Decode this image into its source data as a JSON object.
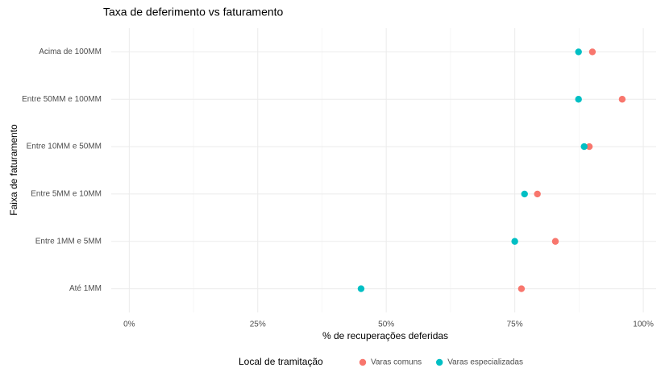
{
  "chart_data": {
    "type": "dot",
    "title": "Taxa de deferimento vs faturamento",
    "x_label": "% de recuperações deferidas",
    "y_label": "Faixa de faturamento",
    "legend_title": "Local de tramitação",
    "legend_position": "bottom",
    "categories": [
      "Acima de 100MM",
      "Entre 50MM e 100MM",
      "Entre 10MM e 50MM",
      "Entre 5MM e 10MM",
      "Entre 1MM e 5MM",
      "Até 1MM"
    ],
    "series": [
      {
        "name": "Varas comuns",
        "color": "#f8766d",
        "values": [
          90.1,
          95.9,
          89.5,
          79.4,
          82.9,
          76.3
        ]
      },
      {
        "name": "Varas especializadas",
        "color": "#00bfc4",
        "values": [
          87.4,
          87.4,
          88.5,
          76.9,
          75.0,
          45.1
        ]
      }
    ],
    "xlim": [
      -3.5,
      102.5
    ],
    "xticks": [
      {
        "value": 0,
        "label": "0%"
      },
      {
        "value": 25,
        "label": "25%"
      },
      {
        "value": 50,
        "label": "50%"
      },
      {
        "value": 75,
        "label": "75%"
      },
      {
        "value": 100,
        "label": "100%"
      }
    ],
    "grid": true
  }
}
